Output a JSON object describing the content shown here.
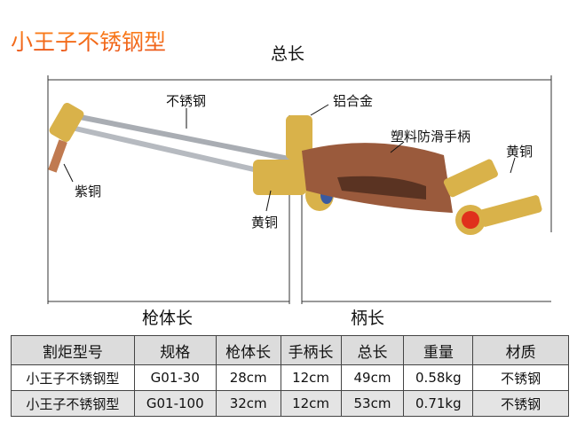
{
  "title": "小王子不锈钢型",
  "dimensions": {
    "total": "总长",
    "body": "枪体长",
    "handle": "柄长"
  },
  "callouts": {
    "stainless": "不锈钢",
    "aluminum": "铝合金",
    "grip": "塑料防滑手柄",
    "brass_right": "黄铜",
    "copper": "紫铜",
    "brass_center": "黄铜"
  },
  "colors": {
    "title_start": "#ff8a1a",
    "title_end": "#e8501a",
    "copper_handle": "#9a5a3c",
    "brass": "#d9b24a",
    "valve_red": "#e0301c"
  },
  "table": {
    "headers": [
      "割炬型号",
      "规格",
      "枪体长",
      "手柄长",
      "总长",
      "重量",
      "材质"
    ],
    "rows": [
      [
        "小王子不锈钢型",
        "G01-30",
        "28cm",
        "12cm",
        "49cm",
        "0.58kg",
        "不锈钢"
      ],
      [
        "小王子不锈钢型",
        "G01-100",
        "32cm",
        "12cm",
        "53cm",
        "0.71kg",
        "不锈钢"
      ]
    ]
  }
}
